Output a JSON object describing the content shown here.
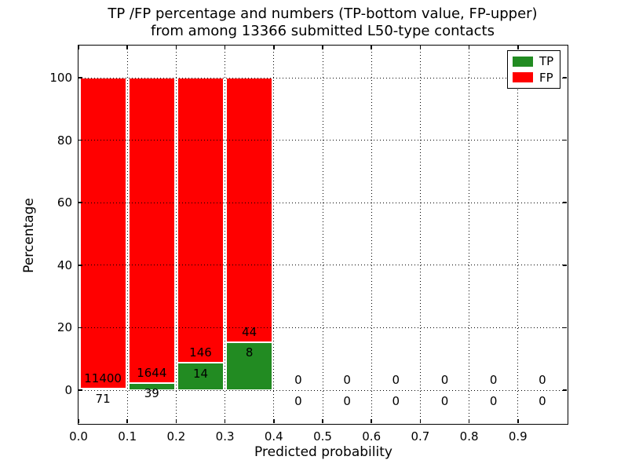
{
  "figure": {
    "title_line1": "TP /FP percentage and numbers (TP-bottom value, FP-upper)",
    "title_line2": "from among 13366 submitted L50-type contacts",
    "background": "#ffffff"
  },
  "chart_data": {
    "type": "bar",
    "stacked": true,
    "title": "TP /FP percentage and numbers (TP-bottom value, FP-upper)\nfrom among 13366 submitted L50-type contacts",
    "xlabel": "Predicted probability",
    "ylabel": "Percentage",
    "xlim": [
      0.0,
      1.0
    ],
    "ylim": [
      -10.5,
      110.5
    ],
    "grid": "dotted",
    "bar_value_unit": "percent of bin total (TP+FP), bars total 100% when non-empty",
    "x_tick_labels": [
      "0.0",
      "0.1",
      "0.2",
      "0.3",
      "0.4",
      "0.5",
      "0.6",
      "0.7",
      "0.8",
      "0.9"
    ],
    "y_tick_values": [
      0,
      20,
      40,
      60,
      80,
      100
    ],
    "series": [
      {
        "name": "TP",
        "color": "#228b22",
        "counts": [
          71,
          39,
          14,
          8,
          0,
          0,
          0,
          0,
          0,
          0
        ]
      },
      {
        "name": "FP",
        "color": "#ff0000",
        "counts": [
          11400,
          1644,
          146,
          44,
          0,
          0,
          0,
          0,
          0,
          0
        ]
      }
    ],
    "bins": [
      {
        "x_start": 0.0,
        "x_end": 0.1,
        "tp_count": 71,
        "fp_count": 11400
      },
      {
        "x_start": 0.1,
        "x_end": 0.2,
        "tp_count": 39,
        "fp_count": 1644
      },
      {
        "x_start": 0.2,
        "x_end": 0.3,
        "tp_count": 14,
        "fp_count": 146
      },
      {
        "x_start": 0.3,
        "x_end": 0.4,
        "tp_count": 8,
        "fp_count": 44
      },
      {
        "x_start": 0.4,
        "x_end": 0.5,
        "tp_count": 0,
        "fp_count": 0
      },
      {
        "x_start": 0.5,
        "x_end": 0.6,
        "tp_count": 0,
        "fp_count": 0
      },
      {
        "x_start": 0.6,
        "x_end": 0.7,
        "tp_count": 0,
        "fp_count": 0
      },
      {
        "x_start": 0.7,
        "x_end": 0.8,
        "tp_count": 0,
        "fp_count": 0
      },
      {
        "x_start": 0.8,
        "x_end": 0.9,
        "tp_count": 0,
        "fp_count": 0
      },
      {
        "x_start": 0.9,
        "x_end": 1.0,
        "tp_count": 0,
        "fp_count": 0
      }
    ],
    "legend": {
      "location": "upper right",
      "entries": [
        {
          "label": "TP",
          "color": "#228b22"
        },
        {
          "label": "FP",
          "color": "#ff0000"
        }
      ]
    }
  }
}
